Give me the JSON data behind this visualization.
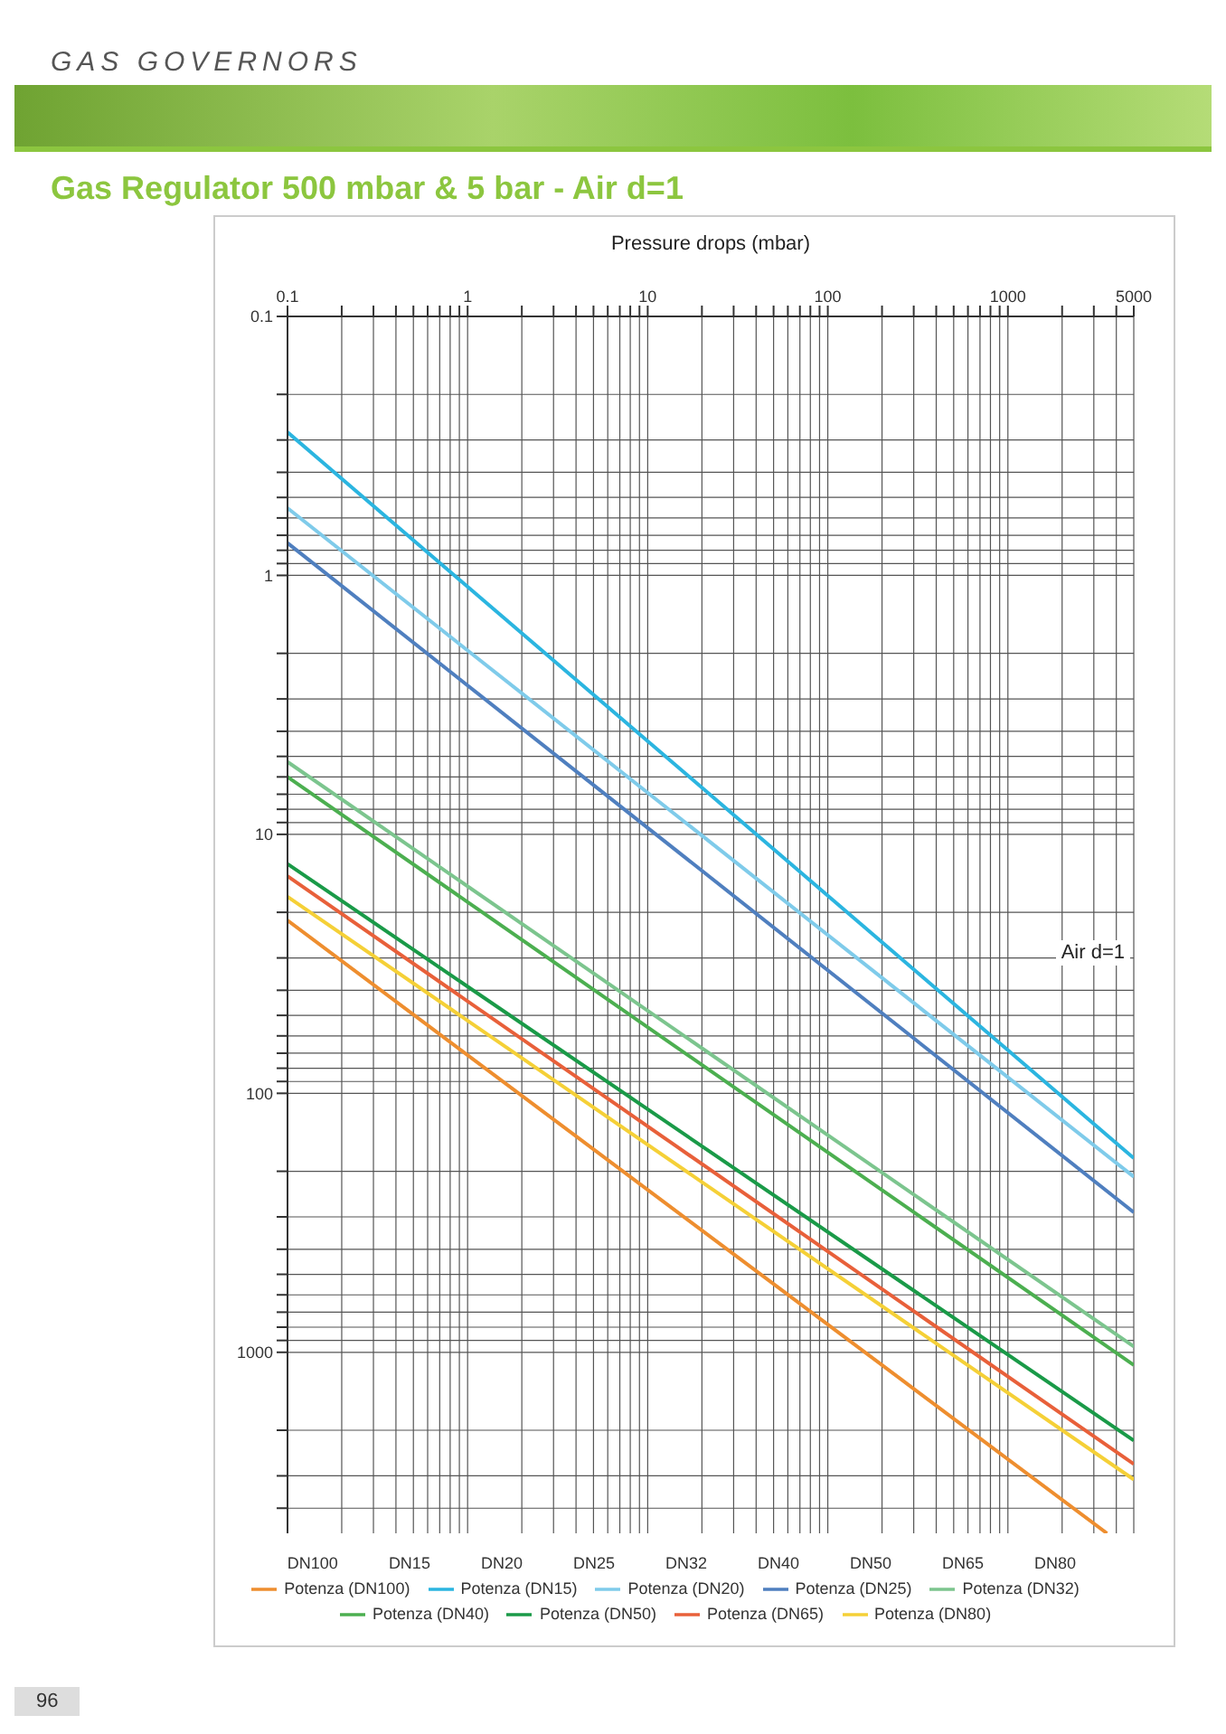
{
  "chart_data": {
    "type": "line",
    "title": "Gas Regulator 500 mbar & 5 bar - Air d=1",
    "xlabel": "Pressure drops (mbar)",
    "annotations": [
      "GAS GOVERNORS",
      "Air d=1",
      "96"
    ],
    "log": "xy",
    "grid": true,
    "legend": "bottom",
    "marker": "none",
    "line_style": "solid",
    "xlim": [
      0.1,
      5000
    ],
    "xticks": [
      0.1,
      {
        "value": 0.2,
        "label": null
      },
      {
        "value": 0.3,
        "label": null
      },
      {
        "value": 0.4,
        "label": null
      },
      {
        "value": 0.5,
        "label": null
      },
      {
        "value": 0.6,
        "label": null
      },
      {
        "value": 0.7,
        "label": null
      },
      {
        "value": 0.8,
        "label": null
      },
      {
        "value": 0.9,
        "label": null
      },
      1,
      {
        "value": 2,
        "label": null
      },
      {
        "value": 3,
        "label": null
      },
      {
        "value": 4,
        "label": null
      },
      {
        "value": 5,
        "label": null
      },
      {
        "value": 6,
        "label": null
      },
      {
        "value": 7,
        "label": null
      },
      {
        "value": 8,
        "label": null
      },
      {
        "value": 9,
        "label": null
      },
      10,
      {
        "value": 20,
        "label": null
      },
      {
        "value": 30,
        "label": null
      },
      {
        "value": 40,
        "label": null
      },
      {
        "value": 50,
        "label": null
      },
      {
        "value": 60,
        "label": null
      },
      {
        "value": 70,
        "label": null
      },
      {
        "value": 80,
        "label": null
      },
      {
        "value": 90,
        "label": null
      },
      100,
      {
        "value": 200,
        "label": null
      },
      {
        "value": 300,
        "label": null
      },
      {
        "value": 400,
        "label": null
      },
      {
        "value": 500,
        "label": null
      },
      {
        "value": 600,
        "label": null
      },
      {
        "value": 700,
        "label": null
      },
      {
        "value": 800,
        "label": null
      },
      {
        "value": 900,
        "label": null
      },
      1000,
      {
        "value": 2000,
        "label": null
      },
      {
        "value": 3000,
        "label": null
      },
      {
        "value": 4000,
        "label": null
      },
      5000
    ],
    "ylim": [
      5000,
      0.1
    ],
    "yticks": [
      0.1,
      {
        "value": 0.2,
        "label": null
      },
      {
        "value": 0.3,
        "label": null
      },
      {
        "value": 0.4,
        "label": null
      },
      {
        "value": 0.5,
        "label": null
      },
      {
        "value": 0.6,
        "label": null
      },
      {
        "value": 0.7,
        "label": null
      },
      {
        "value": 0.8,
        "label": null
      },
      {
        "value": 0.9,
        "label": null
      },
      1,
      {
        "value": 2,
        "label": null
      },
      {
        "value": 3,
        "label": null
      },
      {
        "value": 4,
        "label": null
      },
      {
        "value": 5,
        "label": null
      },
      {
        "value": 6,
        "label": null
      },
      {
        "value": 7,
        "label": null
      },
      {
        "value": 8,
        "label": null
      },
      {
        "value": 9,
        "label": null
      },
      10,
      {
        "value": 20,
        "label": null
      },
      {
        "value": 30,
        "label": null
      },
      {
        "value": 40,
        "label": null
      },
      {
        "value": 50,
        "label": null
      },
      {
        "value": 60,
        "label": null
      },
      {
        "value": 70,
        "label": null
      },
      {
        "value": 80,
        "label": null
      },
      {
        "value": 90,
        "label": null
      },
      100,
      {
        "value": 200,
        "label": null
      },
      {
        "value": 300,
        "label": null
      },
      {
        "value": 400,
        "label": null
      },
      {
        "value": 500,
        "label": null
      },
      {
        "value": 600,
        "label": null
      },
      {
        "value": 700,
        "label": null
      },
      {
        "value": 800,
        "label": null
      },
      {
        "value": 900,
        "label": null
      },
      1000,
      {
        "value": 2000,
        "label": null
      },
      {
        "value": 3000,
        "label": null
      },
      {
        "value": 4000,
        "label": null
      }
    ],
    "series": [
      {
        "name": "Potenza (DN100)",
        "color": "#ee8e2f",
        "x": [
          0.1,
          3550
        ],
        "values": [
          21.5,
          5000
        ]
      },
      {
        "name": "DN100"
      },
      {
        "name": "Potenza (DN80)",
        "color": "#f5d037",
        "x": [
          0.1,
          5000
        ],
        "values": [
          17.4,
          3100
        ]
      },
      {
        "name": "DN80"
      },
      {
        "name": "Potenza (DN65)",
        "color": "#e8603a",
        "x": [
          0.1,
          5000
        ],
        "values": [
          14.5,
          2700
        ]
      },
      {
        "name": "DN65"
      },
      {
        "name": "Potenza (DN50)",
        "color": "#1a9a48",
        "x": [
          0.1,
          5000
        ],
        "values": [
          13,
          2190
        ]
      },
      {
        "name": "DN50"
      },
      {
        "name": "Potenza (DN40)",
        "color": "#4caf50",
        "x": [
          0.1,
          5000
        ],
        "values": [
          6,
          1120
        ]
      },
      {
        "name": "DN40"
      },
      {
        "name": "Potenza (DN32)",
        "color": "#7cc58e",
        "x": [
          0.1,
          5000
        ],
        "values": [
          5.25,
          950
        ]
      },
      {
        "name": "DN32"
      },
      {
        "name": "Potenza (DN25)",
        "color": "#4f7fbf",
        "x": [
          0.1,
          5000
        ],
        "values": [
          0.75,
          288
        ]
      },
      {
        "name": "DN25"
      },
      {
        "name": "Potenza (DN20)",
        "color": "#7fcbea",
        "x": [
          0.1,
          5000
        ],
        "values": [
          0.55,
          210
        ]
      },
      {
        "name": "DN20"
      },
      {
        "name": "Potenza (DN15)",
        "color": "#2bb5e0",
        "x": [
          0.1,
          5000
        ],
        "values": [
          0.28,
          178
        ]
      },
      {
        "name": "DN15"
      }
    ]
  }
}
